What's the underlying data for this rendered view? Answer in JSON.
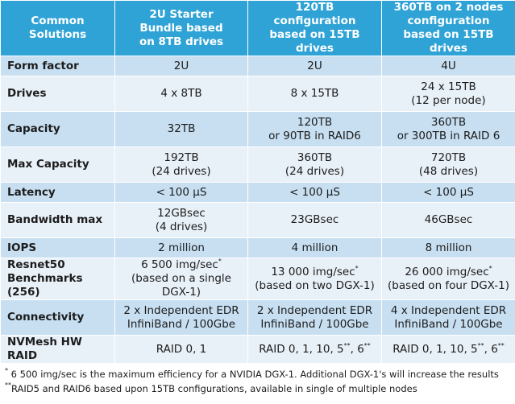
{
  "headers": [
    "Common Solutions",
    "2U Starter Bundle based on 8TB drives",
    "120TB configuration based on 15TB drives",
    "360TB on 2 nodes configuration based on 15TB drives"
  ],
  "rows": {
    "form_factor": {
      "label": "Form factor",
      "c1": "2U",
      "c2": "2U",
      "c3": "4U"
    },
    "drives": {
      "label": "Drives",
      "c1": "4 x 8TB",
      "c2": "8 x 15TB",
      "c3a": "24 x 15TB",
      "c3b": "(12 per node)"
    },
    "capacity": {
      "label": "Capacity",
      "c1": "32TB",
      "c2a": "120TB",
      "c2b": "or 90TB in RAID6",
      "c3a": "360TB",
      "c3b": "or 300TB in RAID 6"
    },
    "max_capacity": {
      "label": "Max Capacity",
      "c1a": "192TB",
      "c1b": "(24 drives)",
      "c2a": "360TB",
      "c2b": "(24 drives)",
      "c3a": "720TB",
      "c3b": "(48 drives)"
    },
    "latency": {
      "label": "Latency",
      "c1": "< 100 µS",
      "c2": "< 100 µS",
      "c3": "< 100 µS"
    },
    "bandwidth": {
      "label": "Bandwidth max",
      "c1a": "12GBsec",
      "c1b": "(4 drives)",
      "c2": "23GBsec",
      "c3": "46GBsec"
    },
    "iops": {
      "label": "IOPS",
      "c1": "2 million",
      "c2": "4 million",
      "c3": "8 million"
    },
    "resnet": {
      "label_a": "Resnet50",
      "label_b": "Benchmarks (256)",
      "c1a": "6 500 img/sec",
      "c1b": "(based on a single DGX-1)",
      "c2a": "13 000 img/sec",
      "c2b": "(based on two DGX-1)",
      "c3a": "26 000 img/sec",
      "c3b": "(based on four DGX-1)",
      "mark": "*"
    },
    "connectivity": {
      "label": "Connectivity",
      "c1a": "2 x Independent EDR",
      "c1b": "InfiniBand / 100Gbe",
      "c2a": "2 x Independent EDR",
      "c2b": "InfiniBand / 100Gbe",
      "c3a": "4 x Independent EDR",
      "c3b": "InfiniBand / 100Gbe"
    },
    "raid": {
      "label": "NVMesh HW RAID",
      "c1": "RAID 0, 1",
      "c2": "RAID 0, 1, 10, 5",
      "c2m1": "**",
      "c2mid": ", 6",
      "c2m2": "**",
      "c3": "RAID 0, 1, 10, 5",
      "c3m1": "**",
      "c3mid": ", 6",
      "c3m2": "**"
    }
  },
  "footnotes": {
    "fn1_mark": "*",
    "fn1": " 6 500 img/sec is the maximum efficiency for a NVIDIA DGX-1. Additional DGX-1's will increase the results",
    "fn2_mark": "**",
    "fn2": "RAID5 and RAID6 based upon 15TB configurations, available in single of multiple nodes"
  }
}
